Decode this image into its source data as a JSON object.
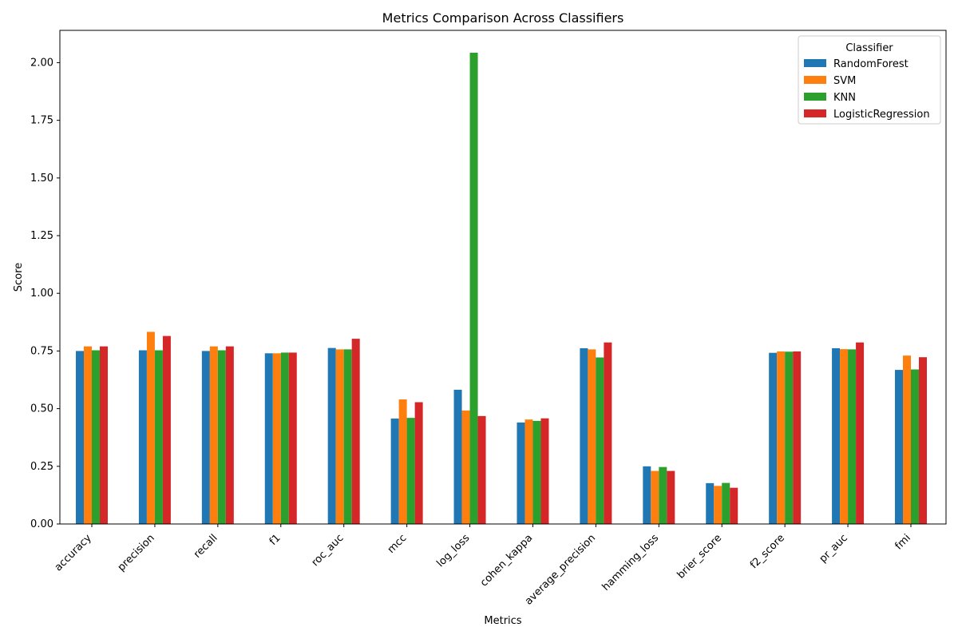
{
  "chart_data": {
    "type": "bar",
    "title": "Metrics Comparison Across Classifiers",
    "xlabel": "Metrics",
    "ylabel": "Score",
    "ylim": [
      0,
      2.14
    ],
    "yticks": [
      0.0,
      0.25,
      0.5,
      0.75,
      1.0,
      1.25,
      1.5,
      1.75,
      2.0
    ],
    "ytick_labels": [
      "0.00",
      "0.25",
      "0.50",
      "0.75",
      "1.00",
      "1.25",
      "1.50",
      "1.75",
      "2.00"
    ],
    "grid": false,
    "legend": {
      "title": "Classifier",
      "placement": "top-right"
    },
    "categories": [
      "accuracy",
      "precision",
      "recall",
      "f1",
      "roc_auc",
      "mcc",
      "log_loss",
      "cohen_kappa",
      "average_precision",
      "hamming_loss",
      "brier_score",
      "f2_score",
      "pr_auc",
      "fmi"
    ],
    "series": [
      {
        "name": "RandomForest",
        "color": "#1f77b4",
        "values": [
          0.75,
          0.753,
          0.75,
          0.74,
          0.763,
          0.457,
          0.582,
          0.44,
          0.762,
          0.25,
          0.177,
          0.742,
          0.762,
          0.668
        ]
      },
      {
        "name": "SVM",
        "color": "#ff7f0e",
        "values": [
          0.77,
          0.833,
          0.77,
          0.74,
          0.757,
          0.54,
          0.492,
          0.453,
          0.757,
          0.23,
          0.165,
          0.748,
          0.758,
          0.73
        ]
      },
      {
        "name": "KNN",
        "color": "#2ca02c",
        "values": [
          0.753,
          0.753,
          0.753,
          0.743,
          0.757,
          0.46,
          2.043,
          0.447,
          0.722,
          0.247,
          0.178,
          0.747,
          0.757,
          0.67
        ]
      },
      {
        "name": "LogisticRegression",
        "color": "#d62728",
        "values": [
          0.77,
          0.815,
          0.77,
          0.743,
          0.803,
          0.528,
          0.468,
          0.458,
          0.787,
          0.23,
          0.157,
          0.748,
          0.787,
          0.723
        ]
      }
    ]
  }
}
